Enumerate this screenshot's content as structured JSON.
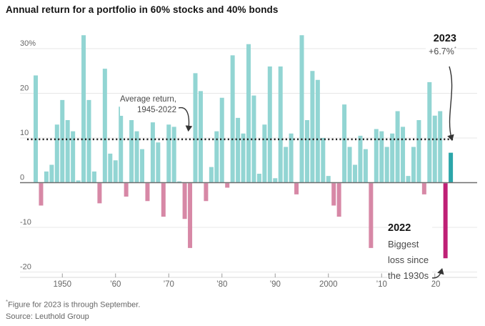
{
  "title": "Annual return for a portfolio in 60% stocks and 40% bonds",
  "chart_data": {
    "type": "bar",
    "title": "Annual return for a portfolio in 60% stocks and 40% bonds",
    "unit": "percent",
    "start_year": 1945,
    "end_year": 2023,
    "values": [
      24,
      -5,
      2.5,
      4,
      13,
      18.5,
      14,
      11.5,
      0.5,
      33,
      18.5,
      2.5,
      -4.5,
      25.5,
      6.5,
      5,
      17,
      -3,
      14,
      11.5,
      7.5,
      -4,
      13.5,
      9,
      -7.5,
      13,
      12.5,
      0.3,
      -8,
      -14.5,
      24.5,
      20.5,
      -4,
      3.5,
      11.5,
      19,
      -1,
      28.5,
      14.5,
      11,
      31,
      19.5,
      2,
      13,
      26,
      1,
      26,
      8,
      11,
      -2.5,
      33,
      14,
      25,
      23,
      10,
      1.5,
      -5,
      -7.5,
      17.5,
      8,
      4,
      10.5,
      7.5,
      -14.5,
      12,
      11.5,
      8,
      11,
      16,
      12.5,
      1.5,
      8,
      14,
      -2.5,
      22.5,
      15,
      16,
      -16.8,
      6.7
    ],
    "ylim": [
      -21,
      34
    ],
    "y_ticks": [
      30,
      20,
      10,
      0,
      -10,
      -20
    ],
    "y_tick_labels": [
      "30%",
      "20",
      "10",
      "0",
      "-10",
      "-20"
    ],
    "x_tick_years": [
      1950,
      1960,
      1970,
      1980,
      1990,
      2000,
      2010,
      2020
    ],
    "x_tick_labels": [
      "1950",
      "’60",
      "’70",
      "’80",
      "’90",
      "2000",
      "’10",
      "’20"
    ],
    "average_line_value": 9.7,
    "grid": true,
    "legend": "none",
    "highlight_years": {
      "2022": "biggest-loss",
      "2023": "current-year"
    },
    "colors": {
      "positive_bar": "#92d5d3",
      "negative_bar": "#d788a6",
      "bar_2022": "#bf2076",
      "bar_2023": "#2ca6aa",
      "gridline": "#e7e7e7",
      "zero_line": "#6e6e6e",
      "average_line": "#222222",
      "axis_text": "#666666"
    }
  },
  "annotations": {
    "average": {
      "line1": "Average return,",
      "line2": "1945-2022"
    },
    "y2023": {
      "year": "2023",
      "value": "+6.7%",
      "footnote_marker": "*"
    },
    "y2022": {
      "year": "2022",
      "line1": "Biggest",
      "line2": "loss since",
      "line3": "the 1930s"
    }
  },
  "footer": {
    "note_marker": "*",
    "note": "Figure for 2023 is through September.",
    "source": "Source: Leuthold Group"
  }
}
